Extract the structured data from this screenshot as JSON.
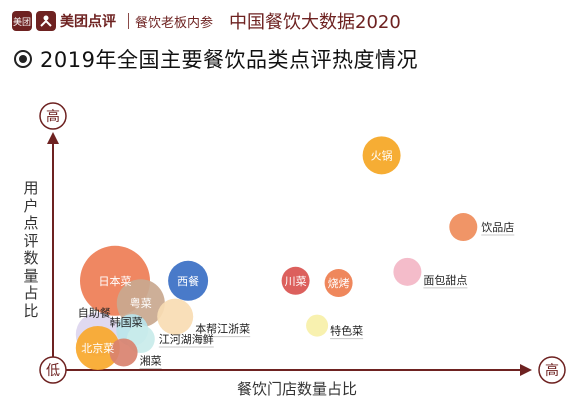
{
  "header": {
    "logo_badge": "美团",
    "brand": "美团点评",
    "sub_brand": "餐饮老板内参",
    "report_title": "中国餐饮大数据2020"
  },
  "chart_data": {
    "type": "bubble",
    "title": "2019年全国主要餐饮品类点评热度情况",
    "xlabel": "餐饮门店数量占比",
    "ylabel": "用户点评数量占比",
    "x_low_label": "低",
    "x_high_label": "高",
    "y_high_label": "高",
    "xlim": [
      0,
      100
    ],
    "ylim": [
      0,
      100
    ],
    "bubbles": [
      {
        "name": "火锅",
        "x": 72,
        "y": 86,
        "r": 19,
        "color": "#f5a623",
        "label_pos": "center",
        "label_color": "#ffffff"
      },
      {
        "name": "饮品店",
        "x": 91,
        "y": 54,
        "r": 14,
        "color": "#ef8c5a",
        "label_pos": "right",
        "label_color": "#222222"
      },
      {
        "name": "面包甜点",
        "x": 78,
        "y": 34,
        "r": 14,
        "color": "#f3b6c6",
        "label_pos": "right-below",
        "label_color": "#222222"
      },
      {
        "name": "川菜",
        "x": 52,
        "y": 30,
        "r": 14,
        "color": "#d9534f",
        "label_pos": "center",
        "label_color": "#ffffff"
      },
      {
        "name": "烧烤",
        "x": 62,
        "y": 29,
        "r": 14,
        "color": "#ee7d4e",
        "label_pos": "center",
        "label_color": "#ffffff"
      },
      {
        "name": "特色菜",
        "x": 57,
        "y": 10,
        "r": 11,
        "color": "#f7f0a8",
        "label_pos": "right-below",
        "label_color": "#222222"
      },
      {
        "name": "日本菜",
        "x": 10,
        "y": 30,
        "r": 35,
        "color": "#ee7d55",
        "label_pos": "center",
        "label_color": "#ffffff"
      },
      {
        "name": "西餐",
        "x": 27,
        "y": 30,
        "r": 20,
        "color": "#3a6fc4",
        "label_pos": "center",
        "label_color": "#ffffff"
      },
      {
        "name": "粤菜",
        "x": 16,
        "y": 20,
        "r": 24,
        "color": "#c9a88f",
        "label_pos": "center",
        "label_color": "#ffffff"
      },
      {
        "name": "本帮江浙菜",
        "x": 24,
        "y": 14,
        "r": 18,
        "color": "#f9dcb3",
        "label_pos": "right-below",
        "label_color": "#222222"
      },
      {
        "name": "自助餐",
        "x": 6,
        "y": 6,
        "r": 22,
        "color": "#ddd6ef",
        "label_pos": "top-left",
        "label_color": "#222222"
      },
      {
        "name": "韩国菜",
        "x": 14,
        "y": 8,
        "r": 16,
        "color": "#b9e3ea",
        "label_pos": "left-above",
        "label_color": "#222222"
      },
      {
        "name": "江河湖海鲜",
        "x": 16,
        "y": 4,
        "r": 14,
        "color": "#c9ebea",
        "label_pos": "right",
        "label_color": "#222222"
      },
      {
        "name": "北京菜",
        "x": 6,
        "y": 0,
        "r": 22,
        "color": "#f8a82b",
        "label_pos": "center",
        "label_color": "#ffffff"
      },
      {
        "name": "湘菜",
        "x": 12,
        "y": -2,
        "r": 14,
        "color": "#d9826f",
        "label_pos": "right-below",
        "label_color": "#222222"
      }
    ]
  }
}
